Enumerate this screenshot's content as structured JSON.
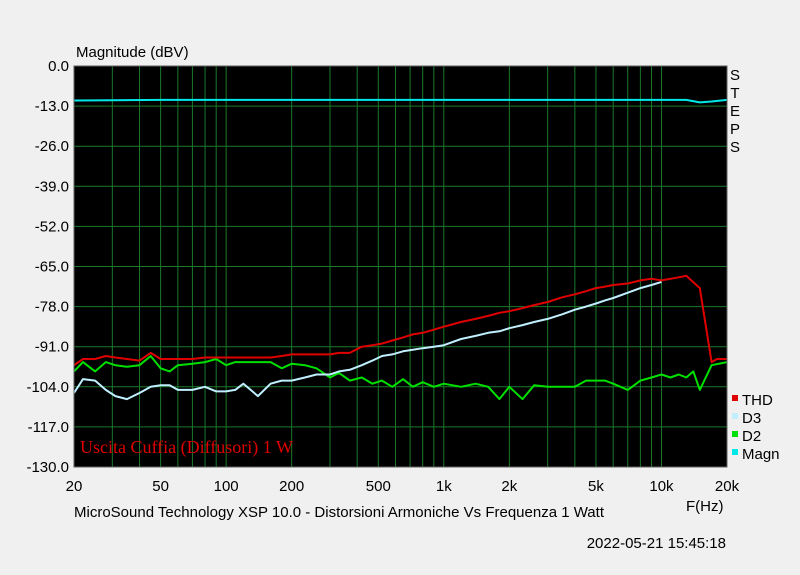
{
  "chart_data": {
    "type": "line",
    "ylabel": "Magnitude (dBV)",
    "xlabel": "F(Hz)",
    "caption": "MicroSound Technology XSP 10.0 - Distorsioni Armoniche Vs Frequenza 1 Watt",
    "timestamp": "2022-05-21 15:45:18",
    "annotation": "Uscita Cuffia (Diffusori) 1 W",
    "steps_label": [
      "S",
      "T",
      "E",
      "P",
      "S"
    ],
    "x_scale": "log",
    "xlim": [
      20,
      20000
    ],
    "ylim": [
      -130,
      0
    ],
    "grid": true,
    "legend_position": "right-bottom",
    "x_ticks": [
      {
        "value": 20,
        "label": "20"
      },
      {
        "value": 50,
        "label": "50"
      },
      {
        "value": 100,
        "label": "100"
      },
      {
        "value": 200,
        "label": "200"
      },
      {
        "value": 500,
        "label": "500"
      },
      {
        "value": 1000,
        "label": "1k"
      },
      {
        "value": 2000,
        "label": "2k"
      },
      {
        "value": 5000,
        "label": "5k"
      },
      {
        "value": 10000,
        "label": "10k"
      },
      {
        "value": 20000,
        "label": "20k"
      }
    ],
    "y_ticks": [
      {
        "value": 0,
        "label": "0.0"
      },
      {
        "value": -13,
        "label": "-13.0"
      },
      {
        "value": -26,
        "label": "-26.0"
      },
      {
        "value": -39,
        "label": "-39.0"
      },
      {
        "value": -52,
        "label": "-52.0"
      },
      {
        "value": -65,
        "label": "-65.0"
      },
      {
        "value": -78,
        "label": "-78.0"
      },
      {
        "value": -91,
        "label": "-91.0"
      },
      {
        "value": -104,
        "label": "-104.0"
      },
      {
        "value": -117,
        "label": "-117.0"
      },
      {
        "value": -130,
        "label": "-130.0"
      }
    ],
    "series": [
      {
        "name": "Magn",
        "color": "#00e8e8",
        "x": [
          20,
          30,
          50,
          100,
          200,
          500,
          1000,
          2000,
          5000,
          10000,
          13000,
          15000,
          17000,
          20000
        ],
        "y": [
          -11.2,
          -11.1,
          -11.0,
          -11.0,
          -11.0,
          -11.0,
          -11.0,
          -11.0,
          -11.0,
          -11.0,
          -11.0,
          -11.8,
          -11.5,
          -11.0
        ]
      },
      {
        "name": "D2",
        "color": "#00e000",
        "x": [
          20,
          22,
          25,
          28,
          31,
          35,
          40,
          45,
          50,
          55,
          60,
          70,
          80,
          90,
          100,
          110,
          120,
          140,
          160,
          180,
          200,
          230,
          260,
          300,
          330,
          370,
          420,
          470,
          520,
          580,
          650,
          720,
          800,
          900,
          1000,
          1200,
          1400,
          1600,
          1800,
          2000,
          2300,
          2600,
          3000,
          3500,
          4000,
          4500,
          5000,
          5500,
          6000,
          7000,
          8000,
          9000,
          10000,
          11000,
          12000,
          13000,
          14000,
          15000,
          17000,
          20000
        ],
        "y": [
          -99,
          -96,
          -99,
          -96,
          -97,
          -97.5,
          -97,
          -94,
          -98,
          -99,
          -97,
          -96.5,
          -96,
          -95,
          -97,
          -96,
          -96,
          -96,
          -96,
          -98,
          -96.5,
          -97,
          -98,
          -101,
          -99.5,
          -102,
          -101,
          -103,
          -102,
          -104,
          -101.5,
          -104,
          -102.5,
          -104,
          -103,
          -104,
          -103,
          -104,
          -108,
          -104,
          -108,
          -103.5,
          -104,
          -104,
          -104,
          -102,
          -102,
          -102,
          -103,
          -105,
          -102,
          -101,
          -100,
          -101,
          -100,
          -101,
          -99,
          -105,
          -97,
          -96
        ]
      },
      {
        "name": "D3",
        "color": "#c0f0ff",
        "x": [
          20,
          22,
          25,
          28,
          31,
          35,
          40,
          45,
          50,
          55,
          60,
          70,
          80,
          90,
          100,
          110,
          120,
          140,
          160,
          180,
          200,
          230,
          260,
          300,
          330,
          370,
          420,
          470,
          520,
          580,
          650,
          720,
          800,
          900,
          1000,
          1200,
          1400,
          1600,
          1800,
          2000,
          2300,
          2600,
          3000,
          3500,
          4000,
          4500,
          5000,
          5500,
          6000,
          7000,
          8000,
          9000,
          10000
        ],
        "y": [
          -106,
          -101.5,
          -102,
          -105,
          -107,
          -108,
          -106,
          -104,
          -103.5,
          -103.5,
          -105,
          -105,
          -104,
          -105.5,
          -105.5,
          -105,
          -103,
          -107,
          -103,
          -102,
          -102,
          -101,
          -100,
          -100,
          -99,
          -98.5,
          -97,
          -95.5,
          -94,
          -93.5,
          -92.5,
          -92,
          -91.5,
          -91,
          -90.5,
          -88.5,
          -87.5,
          -86.5,
          -86,
          -85,
          -84,
          -83,
          -82,
          -80.5,
          -79,
          -78,
          -77,
          -76,
          -75.2,
          -73.5,
          -72,
          -71,
          -70
        ]
      },
      {
        "name": "THD",
        "color": "#e00000",
        "x": [
          20,
          22,
          25,
          28,
          31,
          35,
          40,
          45,
          50,
          55,
          60,
          70,
          80,
          90,
          100,
          110,
          120,
          140,
          160,
          180,
          200,
          230,
          260,
          300,
          330,
          370,
          420,
          470,
          520,
          580,
          650,
          720,
          800,
          900,
          1000,
          1200,
          1400,
          1600,
          1800,
          2000,
          2300,
          2600,
          3000,
          3500,
          4000,
          4500,
          5000,
          5500,
          6000,
          7000,
          8000,
          9000,
          10000,
          11000,
          12000,
          13000,
          15000,
          17000,
          18000,
          20000
        ],
        "y": [
          -97,
          -95,
          -95,
          -94,
          -94.5,
          -95,
          -95.5,
          -93,
          -95,
          -95,
          -95,
          -95,
          -94.5,
          -94.5,
          -94.5,
          -94.5,
          -94.5,
          -94.5,
          -94.5,
          -94,
          -93.5,
          -93.5,
          -93.5,
          -93.5,
          -93,
          -93,
          -91,
          -90.5,
          -90,
          -89,
          -88,
          -87,
          -86.5,
          -85.5,
          -84.5,
          -83,
          -82,
          -81,
          -80,
          -79.5,
          -78.5,
          -77.5,
          -76.5,
          -75,
          -74,
          -73,
          -72,
          -71.5,
          -71,
          -70.5,
          -69.5,
          -69,
          -69.5,
          -69,
          -68.5,
          -68,
          -72,
          -96,
          -95,
          -95
        ]
      }
    ]
  }
}
